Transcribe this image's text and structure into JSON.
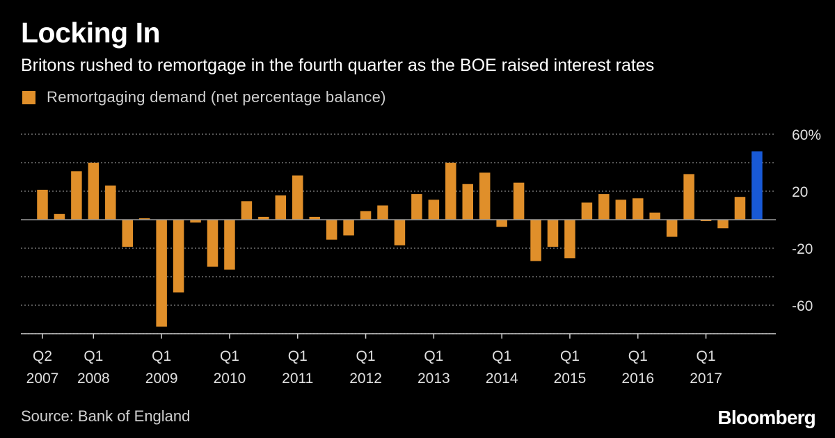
{
  "header": {
    "title": "Locking In",
    "subtitle": "Britons rushed to remortgage in the fourth quarter as the BOE raised interest rates"
  },
  "footer": {
    "source": "Source: Bank of England",
    "brand": "Bloomberg"
  },
  "colors": {
    "background": "#000000",
    "bar": "#E08F2A",
    "highlight_bar": "#1859D6",
    "grid": "#8a8a8a",
    "text": "#ffffff"
  },
  "chart_data": {
    "type": "bar",
    "series": [
      {
        "name": "Remortgaging demand (net percentage balance)",
        "values": [
          21,
          4,
          34,
          40,
          24,
          -19,
          1,
          -75,
          -51,
          -2,
          -33,
          -35,
          13,
          2,
          17,
          31,
          2,
          -14,
          -11,
          6,
          10,
          -18,
          18,
          14,
          40,
          25,
          33,
          -5,
          26,
          -29,
          -19,
          -27,
          12,
          18,
          14,
          15,
          5,
          -12,
          32,
          -1,
          -6,
          16,
          48
        ],
        "highlight_last": true
      }
    ],
    "x_ticks": [
      {
        "index": 0,
        "quarter": "Q2",
        "year": "2007"
      },
      {
        "index": 3,
        "quarter": "Q1",
        "year": "2008"
      },
      {
        "index": 7,
        "quarter": "Q1",
        "year": "2009"
      },
      {
        "index": 11,
        "quarter": "Q1",
        "year": "2010"
      },
      {
        "index": 15,
        "quarter": "Q1",
        "year": "2011"
      },
      {
        "index": 19,
        "quarter": "Q1",
        "year": "2012"
      },
      {
        "index": 23,
        "quarter": "Q1",
        "year": "2013"
      },
      {
        "index": 27,
        "quarter": "Q1",
        "year": "2014"
      },
      {
        "index": 31,
        "quarter": "Q1",
        "year": "2015"
      },
      {
        "index": 35,
        "quarter": "Q1",
        "year": "2016"
      },
      {
        "index": 39,
        "quarter": "Q1",
        "year": "2017"
      }
    ],
    "y_ticks": [
      60,
      40,
      20,
      0,
      -20,
      -40,
      -60,
      -80
    ],
    "y_tick_labels": [
      "60%",
      "",
      "20",
      "",
      "-20",
      "",
      "-60",
      ""
    ],
    "ylim": [
      -80,
      60
    ],
    "grid": true,
    "zero_line": true,
    "legend_position": "top-left",
    "xlabel": "",
    "ylabel": ""
  }
}
